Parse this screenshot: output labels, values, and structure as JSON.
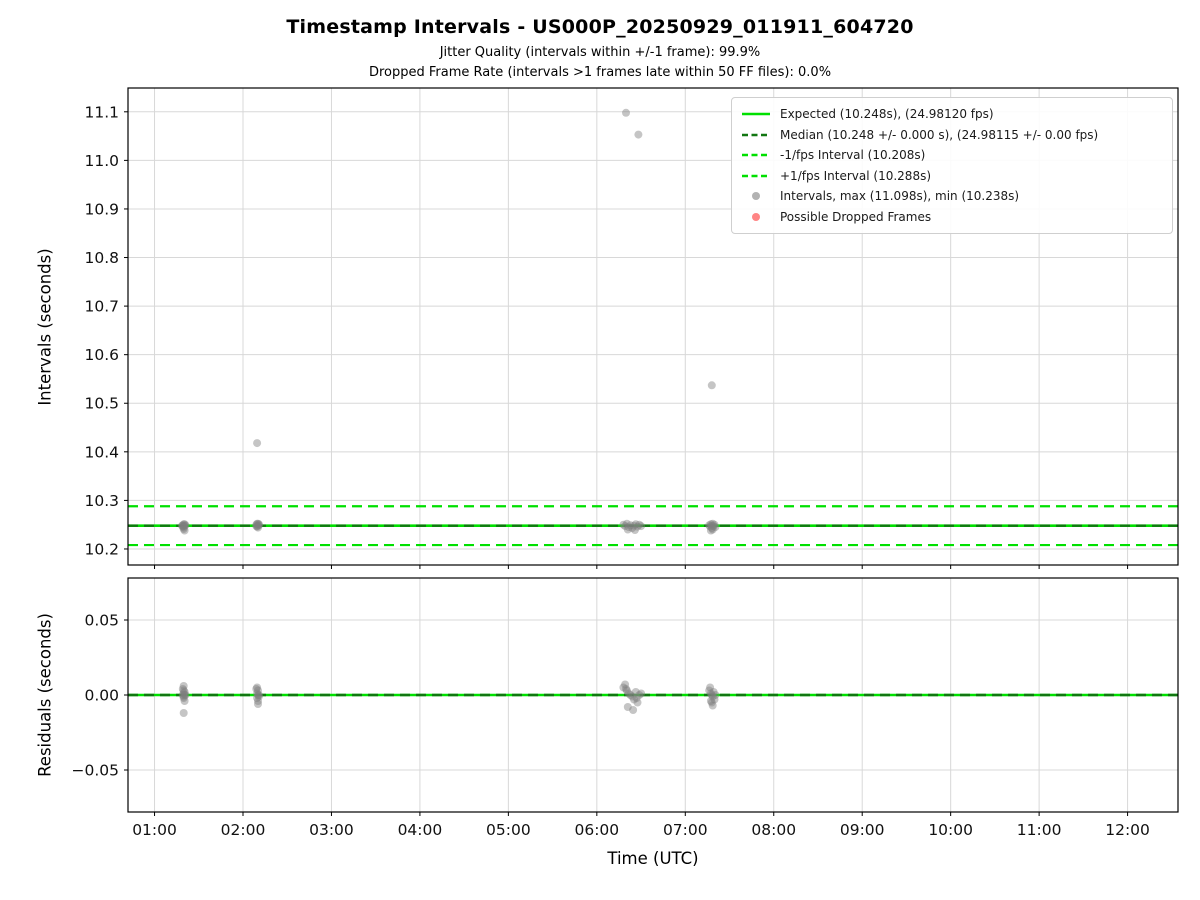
{
  "figure": {
    "title": "Timestamp Intervals - US000P_20250929_011911_604720",
    "subtitle_line1": "Jitter Quality (intervals within +/-1 frame): 99.9%",
    "subtitle_line2": "Dropped Frame Rate (intervals >1 frames late within 50 FF files): 0.0%",
    "xlabel": "Time (UTC)"
  },
  "colors": {
    "expected": "#00e000",
    "median": "#117711",
    "fps_interval": "#00e000",
    "points": "#7f7f7f",
    "dropped": "#ff3333",
    "grid": "#d8d8d8",
    "spine": "#000000"
  },
  "legend": {
    "items": [
      {
        "label": "Expected (10.248s), (24.98120 fps)",
        "swatch": "line-solid",
        "color_key": "expected"
      },
      {
        "label": "Median (10.248 +/- 0.000 s), (24.98115 +/- 0.00 fps)",
        "swatch": "line-dashed",
        "color_key": "median"
      },
      {
        "label": "-1/fps Interval (10.208s)",
        "swatch": "line-dashed",
        "color_key": "fps_interval"
      },
      {
        "label": "+1/fps Interval (10.288s)",
        "swatch": "line-dashed",
        "color_key": "fps_interval"
      },
      {
        "label": "Intervals, max (11.098s), min (10.238s)",
        "swatch": "dot",
        "color_key": "points"
      },
      {
        "label": "Possible Dropped Frames",
        "swatch": "dot",
        "color_key": "dropped"
      }
    ]
  },
  "chart_data": [
    {
      "type": "scatter",
      "name": "intervals-plot",
      "ylabel": "Intervals (seconds)",
      "xlim": [
        0.7,
        12.57
      ],
      "ylim": [
        10.167,
        11.149
      ],
      "grid": true,
      "xticks": {
        "values": [
          1,
          2,
          3,
          4,
          5,
          6,
          7,
          8,
          9,
          10,
          11,
          12
        ],
        "labels": [
          "01:00",
          "02:00",
          "03:00",
          "04:00",
          "05:00",
          "06:00",
          "07:00",
          "08:00",
          "09:00",
          "10:00",
          "11:00",
          "12:00"
        ],
        "show_labels": false
      },
      "yticks": {
        "values": [
          10.2,
          10.3,
          10.4,
          10.5,
          10.6,
          10.7,
          10.8,
          10.9,
          11.0,
          11.1
        ],
        "labels": [
          "10.2",
          "10.3",
          "10.4",
          "10.5",
          "10.6",
          "10.7",
          "10.8",
          "10.9",
          "11.0",
          "11.1"
        ]
      },
      "hlines": [
        {
          "y": 10.248,
          "style": "solid",
          "color_key": "expected",
          "width": 2.6,
          "name": "expected-line"
        },
        {
          "y": 10.248,
          "style": "dashed",
          "color_key": "median",
          "width": 2.4,
          "name": "median-line"
        },
        {
          "y": 10.208,
          "style": "dashed",
          "color_key": "fps_interval",
          "width": 2.2,
          "name": "minus-1fps-line"
        },
        {
          "y": 10.288,
          "style": "dashed",
          "color_key": "fps_interval",
          "width": 2.2,
          "name": "plus-1fps-line"
        }
      ],
      "points": [
        [
          1.32,
          10.249
        ],
        [
          1.33,
          10.251
        ],
        [
          1.34,
          10.248
        ],
        [
          1.33,
          10.247
        ],
        [
          1.32,
          10.246
        ],
        [
          1.34,
          10.251
        ],
        [
          1.35,
          10.249
        ],
        [
          1.31,
          10.248
        ],
        [
          1.33,
          10.244
        ],
        [
          1.33,
          10.241
        ],
        [
          1.34,
          10.238
        ],
        [
          2.16,
          10.418
        ],
        [
          2.15,
          10.25
        ],
        [
          2.16,
          10.252
        ],
        [
          2.17,
          10.248
        ],
        [
          2.18,
          10.251
        ],
        [
          2.16,
          10.246
        ],
        [
          2.17,
          10.244
        ],
        [
          2.18,
          10.249
        ],
        [
          2.15,
          10.247
        ],
        [
          2.17,
          10.252
        ],
        [
          6.33,
          11.098
        ],
        [
          6.47,
          11.053
        ],
        [
          6.3,
          10.25
        ],
        [
          6.32,
          10.247
        ],
        [
          6.34,
          10.252
        ],
        [
          6.36,
          10.245
        ],
        [
          6.38,
          10.249
        ],
        [
          6.4,
          10.243
        ],
        [
          6.42,
          10.248
        ],
        [
          6.44,
          10.251
        ],
        [
          6.46,
          10.246
        ],
        [
          6.48,
          10.25
        ],
        [
          6.5,
          10.247
        ],
        [
          6.35,
          10.24
        ],
        [
          6.43,
          10.239
        ],
        [
          7.3,
          10.537
        ],
        [
          7.27,
          10.249
        ],
        [
          7.28,
          10.246
        ],
        [
          7.29,
          10.251
        ],
        [
          7.3,
          10.248
        ],
        [
          7.31,
          10.252
        ],
        [
          7.32,
          10.247
        ],
        [
          7.33,
          10.25
        ],
        [
          7.34,
          10.245
        ],
        [
          7.3,
          10.243
        ],
        [
          7.31,
          10.24
        ],
        [
          7.29,
          10.238
        ]
      ]
    },
    {
      "type": "scatter",
      "name": "residuals-plot",
      "ylabel": "Residuals (seconds)",
      "xlim": [
        0.7,
        12.57
      ],
      "ylim": [
        -0.078,
        0.078
      ],
      "grid": true,
      "xticks": {
        "values": [
          1,
          2,
          3,
          4,
          5,
          6,
          7,
          8,
          9,
          10,
          11,
          12
        ],
        "labels": [
          "01:00",
          "02:00",
          "03:00",
          "04:00",
          "05:00",
          "06:00",
          "07:00",
          "08:00",
          "09:00",
          "10:00",
          "11:00",
          "12:00"
        ],
        "show_labels": true
      },
      "yticks": {
        "values": [
          -0.05,
          0,
          0.05
        ],
        "labels": [
          "−0.05",
          "0.00",
          "0.05"
        ]
      },
      "hlines": [
        {
          "y": 0,
          "style": "solid",
          "color_key": "expected",
          "width": 2.6,
          "name": "expected-residual-line"
        },
        {
          "y": 0,
          "style": "dashed",
          "color_key": "median",
          "width": 2.4,
          "name": "median-residual-line"
        }
      ],
      "points": [
        [
          1.32,
          0.004
        ],
        [
          1.33,
          0.006
        ],
        [
          1.33,
          0.003
        ],
        [
          1.34,
          0.002
        ],
        [
          1.33,
          0.001
        ],
        [
          1.32,
          0.0
        ],
        [
          1.34,
          0.0
        ],
        [
          1.35,
          0.0
        ],
        [
          1.33,
          -0.001
        ],
        [
          1.33,
          -0.002
        ],
        [
          1.34,
          -0.004
        ],
        [
          1.33,
          -0.012
        ],
        [
          2.15,
          0.004
        ],
        [
          2.16,
          0.005
        ],
        [
          2.17,
          0.003
        ],
        [
          2.16,
          0.001
        ],
        [
          2.17,
          0.0
        ],
        [
          2.18,
          0.0
        ],
        [
          2.16,
          -0.002
        ],
        [
          2.17,
          -0.004
        ],
        [
          2.17,
          -0.006
        ],
        [
          2.18,
          -0.001
        ],
        [
          6.3,
          0.005
        ],
        [
          6.32,
          0.007
        ],
        [
          6.34,
          0.003
        ],
        [
          6.36,
          0.001
        ],
        [
          6.38,
          0.0
        ],
        [
          6.4,
          -0.001
        ],
        [
          6.42,
          -0.003
        ],
        [
          6.44,
          0.002
        ],
        [
          6.46,
          -0.005
        ],
        [
          6.48,
          0.0
        ],
        [
          6.5,
          0.001
        ],
        [
          6.35,
          -0.008
        ],
        [
          6.41,
          -0.01
        ],
        [
          6.33,
          0.004
        ],
        [
          6.45,
          -0.002
        ],
        [
          7.27,
          0.003
        ],
        [
          7.28,
          0.005
        ],
        [
          7.29,
          0.001
        ],
        [
          7.3,
          0.0
        ],
        [
          7.31,
          -0.001
        ],
        [
          7.32,
          0.002
        ],
        [
          7.33,
          -0.003
        ],
        [
          7.34,
          0.0
        ],
        [
          7.3,
          -0.005
        ],
        [
          7.31,
          -0.007
        ],
        [
          7.29,
          -0.004
        ]
      ]
    }
  ]
}
